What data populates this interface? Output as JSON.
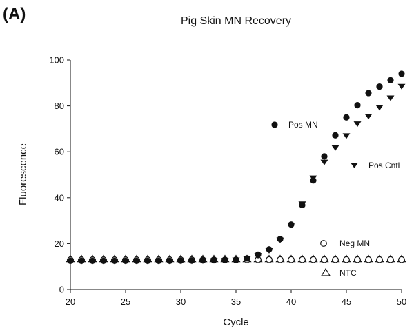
{
  "panel_label": "(A)",
  "chart_data": {
    "type": "scatter",
    "title": "Pig Skin MN Recovery",
    "xlabel": "Cycle",
    "ylabel": "Fluorescence",
    "xlim": [
      20,
      50
    ],
    "ylim": [
      0,
      100
    ],
    "xticks": [
      "20",
      "25",
      "30",
      "35",
      "40",
      "45",
      "50"
    ],
    "yticks": [
      "0",
      "20",
      "40",
      "60",
      "80",
      "100"
    ],
    "grid": false,
    "x": [
      20,
      21,
      22,
      23,
      24,
      25,
      26,
      27,
      28,
      29,
      30,
      31,
      32,
      33,
      34,
      35,
      36,
      37,
      38,
      39,
      40,
      41,
      42,
      43,
      44,
      45,
      46,
      47,
      48,
      49,
      50
    ],
    "series": [
      {
        "name": "Pos MN",
        "marker": "filled-circle",
        "color": "#111111",
        "values": [
          12.5,
          12.5,
          12.5,
          12.5,
          12.5,
          12.5,
          12.5,
          12.5,
          12.5,
          12.5,
          12.6,
          12.6,
          12.7,
          12.8,
          12.9,
          13.0,
          13.6,
          15.2,
          17.5,
          22.0,
          28.3,
          36.8,
          47.5,
          58.0,
          67.2,
          75.0,
          80.3,
          85.6,
          88.4,
          91.2,
          94.0
        ]
      },
      {
        "name": "Pos Cntl",
        "marker": "filled-down-triangle",
        "color": "#111111",
        "values": [
          12.3,
          12.3,
          12.3,
          12.3,
          12.3,
          12.3,
          12.3,
          12.3,
          12.3,
          12.3,
          12.4,
          12.4,
          12.5,
          12.6,
          12.7,
          12.9,
          13.4,
          14.8,
          17.0,
          21.6,
          28.0,
          37.3,
          48.6,
          55.5,
          61.8,
          67.0,
          72.2,
          75.5,
          79.3,
          83.5,
          88.5
        ]
      },
      {
        "name": "Neg MN",
        "marker": "open-circle",
        "color": "#111111",
        "values": [
          12.9,
          12.9,
          12.9,
          12.9,
          12.9,
          12.9,
          12.9,
          12.9,
          12.9,
          12.9,
          12.9,
          12.9,
          12.9,
          12.9,
          12.9,
          12.9,
          13.0,
          13.0,
          13.0,
          13.0,
          13.0,
          13.0,
          13.0,
          13.0,
          13.0,
          13.0,
          13.0,
          13.0,
          13.0,
          13.0,
          13.0
        ]
      },
      {
        "name": "NTC",
        "marker": "open-up-triangle",
        "color": "#111111",
        "values": [
          13.3,
          13.3,
          13.3,
          13.3,
          13.3,
          13.3,
          13.3,
          13.3,
          13.3,
          13.3,
          13.3,
          13.3,
          13.3,
          13.3,
          13.3,
          13.3,
          13.3,
          13.3,
          13.3,
          13.3,
          13.3,
          13.3,
          13.3,
          13.3,
          13.3,
          13.3,
          13.3,
          13.3,
          13.3,
          13.3,
          13.3
        ]
      }
    ],
    "legend_placement": "inline labels beside curves"
  }
}
